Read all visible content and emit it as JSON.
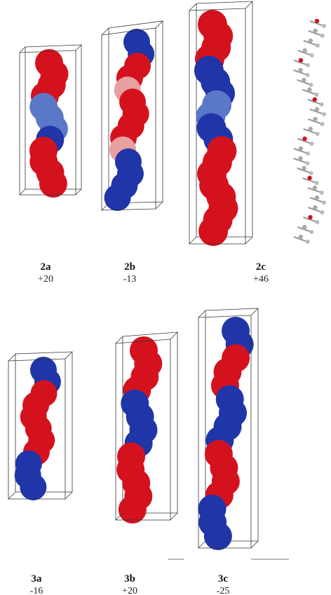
{
  "figure": {
    "items": [
      {
        "label": "2a",
        "value": "+20"
      },
      {
        "label": "2b",
        "value": "-13"
      },
      {
        "label": "2c",
        "value": "+46"
      },
      {
        "label": "3a",
        "value": "-16"
      },
      {
        "label": "3b",
        "value": "+20"
      },
      {
        "label": "3c",
        "value": "-25"
      }
    ]
  }
}
